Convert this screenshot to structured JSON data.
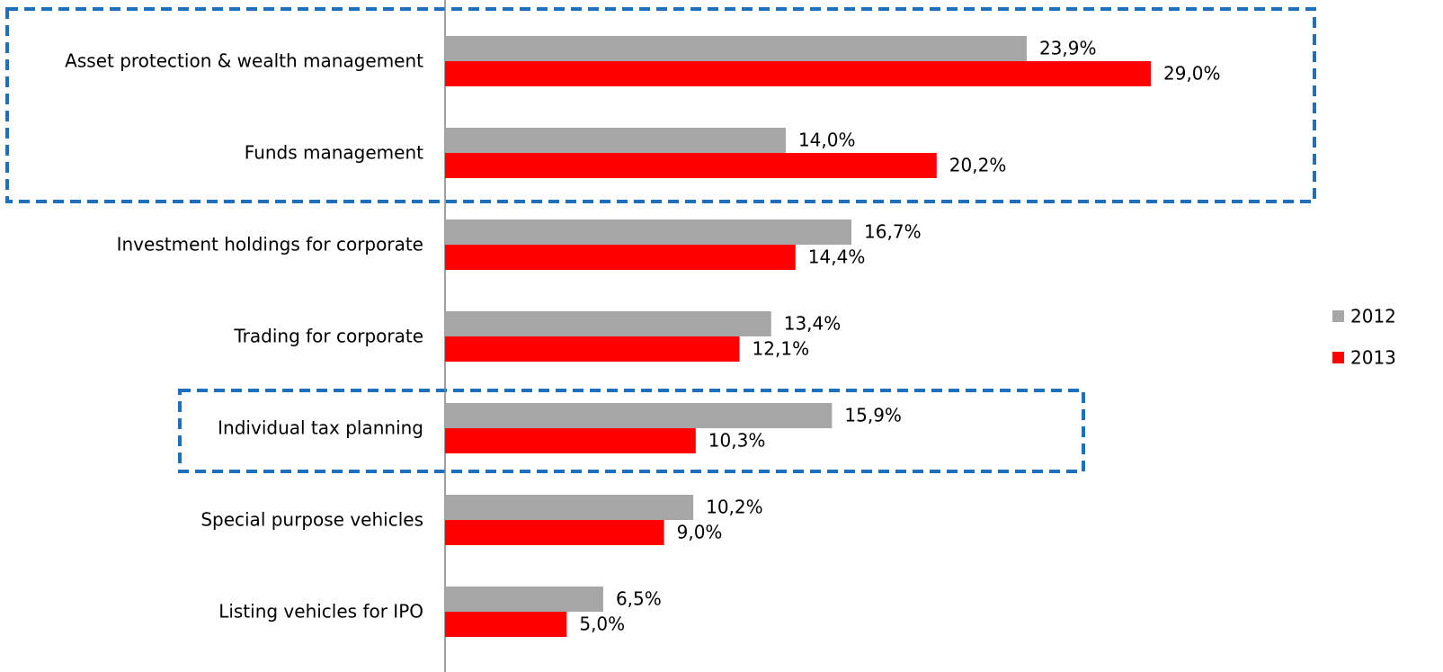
{
  "chart_data": {
    "type": "hbar",
    "categories": [
      "Asset protection & wealth management",
      "Funds management",
      "Investment holdings for corporate",
      "Trading for corporate",
      "Individual tax planning",
      "Special purpose vehicles",
      "Listing vehicles for IPO"
    ],
    "series": [
      {
        "name": "2012",
        "color": "#a6a6a6",
        "values": [
          23.9,
          14.0,
          16.7,
          13.4,
          15.9,
          10.2,
          6.5
        ],
        "value_labels": [
          "23,9%",
          "14,0%",
          "16,7%",
          "13,4%",
          "15,9%",
          "10,2%",
          "6,5%"
        ]
      },
      {
        "name": "2013",
        "color": "#ff0000",
        "values": [
          29.0,
          20.2,
          14.4,
          12.1,
          10.3,
          9.0,
          5.0
        ],
        "value_labels": [
          "29,0%",
          "20,2%",
          "14,4%",
          "12,1%",
          "10,3%",
          "9,0%",
          "5,0%"
        ]
      }
    ],
    "legend": "right"
  }
}
